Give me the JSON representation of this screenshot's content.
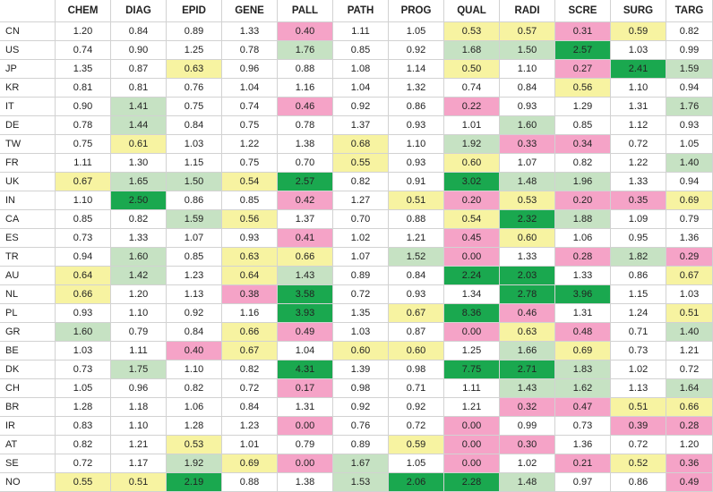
{
  "chart_data": {
    "type": "heatmap",
    "columns": [
      "CHEM",
      "DIAG",
      "EPID",
      "GENE",
      "PALL",
      "PATH",
      "PROG",
      "QUAL",
      "RADI",
      "SCRE",
      "SURG",
      "TARG"
    ],
    "rows": [
      "CN",
      "US",
      "JP",
      "KR",
      "IT",
      "DE",
      "TW",
      "FR",
      "UK",
      "IN",
      "CA",
      "ES",
      "TR",
      "AU",
      "NL",
      "PL",
      "GR",
      "BE",
      "DK",
      "CH",
      "BR",
      "IR",
      "AT",
      "SE",
      "NO"
    ],
    "values": [
      [
        "1.20",
        "0.84",
        "0.89",
        "1.33",
        "0.40",
        "1.11",
        "1.05",
        "0.53",
        "0.57",
        "0.31",
        "0.59",
        "0.82"
      ],
      [
        "0.74",
        "0.90",
        "1.25",
        "0.78",
        "1.76",
        "0.85",
        "0.92",
        "1.68",
        "1.50",
        "2.57",
        "1.03",
        "0.99"
      ],
      [
        "1.35",
        "0.87",
        "0.63",
        "0.96",
        "0.88",
        "1.08",
        "1.14",
        "0.50",
        "1.10",
        "0.27",
        "2.41",
        "1.59"
      ],
      [
        "0.81",
        "0.81",
        "0.76",
        "1.04",
        "1.16",
        "1.04",
        "1.32",
        "0.74",
        "0.84",
        "0.56",
        "1.10",
        "0.94"
      ],
      [
        "0.90",
        "1.41",
        "0.75",
        "0.74",
        "0.46",
        "0.92",
        "0.86",
        "0.22",
        "0.93",
        "1.29",
        "1.31",
        "1.76"
      ],
      [
        "0.78",
        "1.44",
        "0.84",
        "0.75",
        "0.78",
        "1.37",
        "0.93",
        "1.01",
        "1.60",
        "0.85",
        "1.12",
        "0.93"
      ],
      [
        "0.75",
        "0.61",
        "1.03",
        "1.22",
        "1.38",
        "0.68",
        "1.10",
        "1.92",
        "0.33",
        "0.34",
        "0.72",
        "1.05"
      ],
      [
        "1.11",
        "1.30",
        "1.15",
        "0.75",
        "0.70",
        "0.55",
        "0.93",
        "0.60",
        "1.07",
        "0.82",
        "1.22",
        "1.40"
      ],
      [
        "0.67",
        "1.65",
        "1.50",
        "0.54",
        "2.57",
        "0.82",
        "0.91",
        "3.02",
        "1.48",
        "1.96",
        "1.33",
        "0.94"
      ],
      [
        "1.10",
        "2.50",
        "0.86",
        "0.85",
        "0.42",
        "1.27",
        "0.51",
        "0.20",
        "0.53",
        "0.20",
        "0.35",
        "0.69"
      ],
      [
        "0.85",
        "0.82",
        "1.59",
        "0.56",
        "1.37",
        "0.70",
        "0.88",
        "0.54",
        "2.32",
        "1.88",
        "1.09",
        "0.79"
      ],
      [
        "0.73",
        "1.33",
        "1.07",
        "0.93",
        "0.41",
        "1.02",
        "1.21",
        "0.45",
        "0.60",
        "1.06",
        "0.95",
        "1.36"
      ],
      [
        "0.94",
        "1.60",
        "0.85",
        "0.63",
        "0.66",
        "1.07",
        "1.52",
        "0.00",
        "1.33",
        "0.28",
        "1.82",
        "0.29"
      ],
      [
        "0.64",
        "1.42",
        "1.23",
        "0.64",
        "1.43",
        "0.89",
        "0.84",
        "2.24",
        "2.03",
        "1.33",
        "0.86",
        "0.67"
      ],
      [
        "0.66",
        "1.20",
        "1.13",
        "0.38",
        "3.58",
        "0.72",
        "0.93",
        "1.34",
        "2.78",
        "3.96",
        "1.15",
        "1.03"
      ],
      [
        "0.93",
        "1.10",
        "0.92",
        "1.16",
        "3.93",
        "1.35",
        "0.67",
        "8.36",
        "0.46",
        "1.31",
        "1.24",
        "0.51"
      ],
      [
        "1.60",
        "0.79",
        "0.84",
        "0.66",
        "0.49",
        "1.03",
        "0.87",
        "0.00",
        "0.63",
        "0.48",
        "0.71",
        "1.40"
      ],
      [
        "1.03",
        "1.11",
        "0.40",
        "0.67",
        "1.04",
        "0.60",
        "0.60",
        "1.25",
        "1.66",
        "0.69",
        "0.73",
        "1.21"
      ],
      [
        "0.73",
        "1.75",
        "1.10",
        "0.82",
        "4.31",
        "1.39",
        "0.98",
        "7.75",
        "2.71",
        "1.83",
        "1.02",
        "0.72"
      ],
      [
        "1.05",
        "0.96",
        "0.82",
        "0.72",
        "0.17",
        "0.98",
        "0.71",
        "1.11",
        "1.43",
        "1.62",
        "1.13",
        "1.64"
      ],
      [
        "1.28",
        "1.18",
        "1.06",
        "0.84",
        "1.31",
        "0.92",
        "0.92",
        "1.21",
        "0.32",
        "0.47",
        "0.51",
        "0.66"
      ],
      [
        "0.83",
        "1.10",
        "1.28",
        "1.23",
        "0.00",
        "0.76",
        "0.72",
        "0.00",
        "0.99",
        "0.73",
        "0.39",
        "0.28"
      ],
      [
        "0.82",
        "1.21",
        "0.53",
        "1.01",
        "0.79",
        "0.89",
        "0.59",
        "0.00",
        "0.30",
        "1.36",
        "0.72",
        "1.20"
      ],
      [
        "0.72",
        "1.17",
        "1.92",
        "0.69",
        "0.00",
        "1.67",
        "1.05",
        "0.00",
        "1.02",
        "0.21",
        "0.52",
        "0.36"
      ],
      [
        "0.55",
        "0.51",
        "2.19",
        "0.88",
        "1.38",
        "1.53",
        "2.06",
        "2.28",
        "1.48",
        "0.97",
        "0.86",
        "0.49"
      ]
    ],
    "color_scale": {
      "low_below_0_5": "#f5a3c7",
      "mid_low_0_5_to_0_7": "#f7f3a1",
      "neutral_0_7_to_1_4": "#ffffff",
      "mid_high_1_4_to_2_0": "#c6e2c3",
      "high_2_0_and_above": "#1aa84f"
    },
    "grid": true,
    "legend": "none"
  }
}
